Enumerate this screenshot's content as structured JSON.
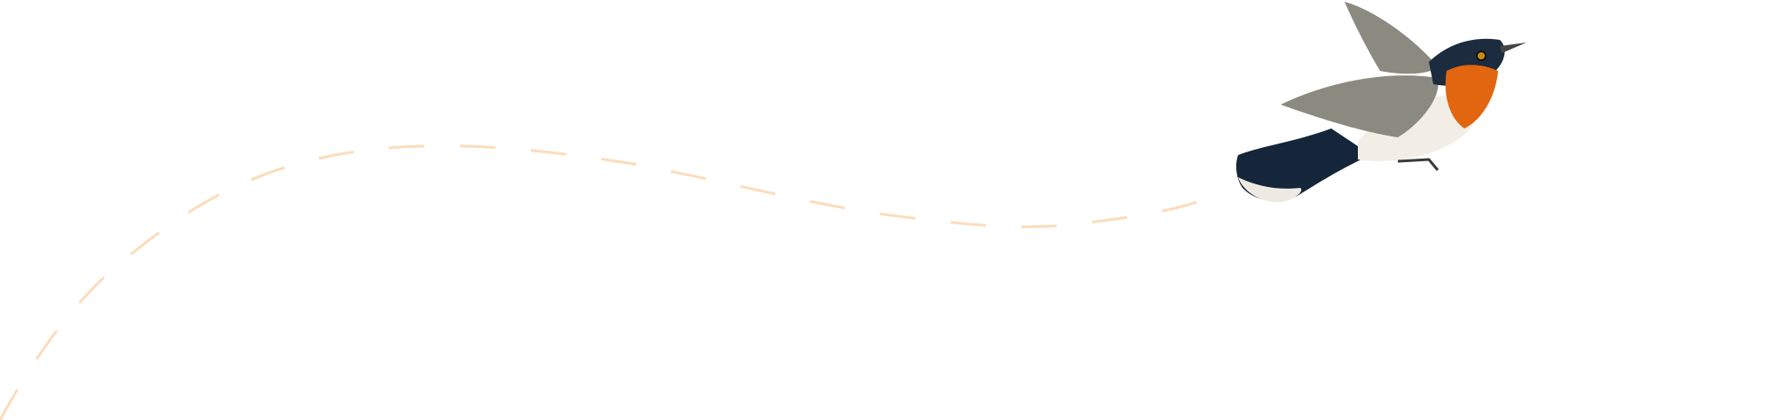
{
  "illustration": {
    "subject": "bird-in-flight",
    "colors": {
      "flight_path": "#fcdcbc",
      "throat": "#e2650f",
      "head": "#1c2b3e",
      "wing": "#8a8a80",
      "belly": "#f2eee6",
      "tail": "#15263a"
    }
  }
}
